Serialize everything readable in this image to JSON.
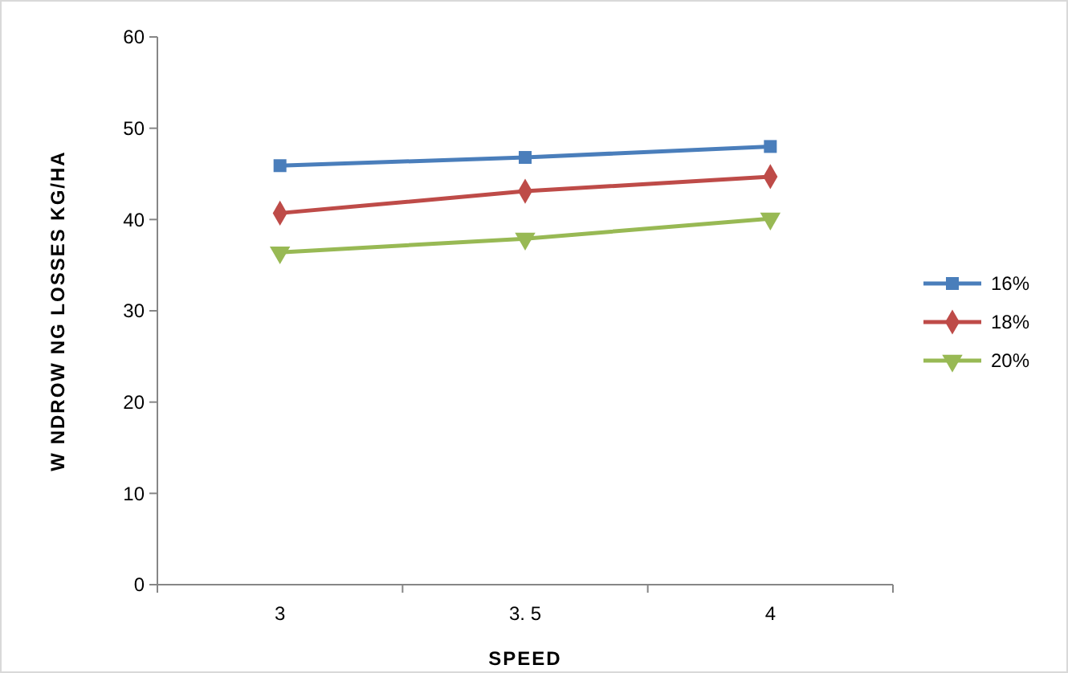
{
  "chart_data": {
    "type": "line",
    "xlabel": "SPEED",
    "ylabel": "W NDROW NG LOSSES  KG/HA",
    "categories": [
      "3",
      "3. 5",
      "4"
    ],
    "ylim": [
      0,
      60
    ],
    "yticks": [
      0,
      10,
      20,
      30,
      40,
      50,
      60
    ],
    "grid": false,
    "legend": "right",
    "series": [
      {
        "name": "16%",
        "color": "#4a7ebb",
        "marker": "square",
        "values": [
          45.9,
          46.8,
          48.0
        ]
      },
      {
        "name": "18%",
        "color": "#be4b48",
        "marker": "diamond",
        "values": [
          40.7,
          43.1,
          44.7
        ]
      },
      {
        "name": "20%",
        "color": "#98b954",
        "marker": "triangle",
        "values": [
          36.4,
          37.9,
          40.1
        ]
      }
    ]
  }
}
